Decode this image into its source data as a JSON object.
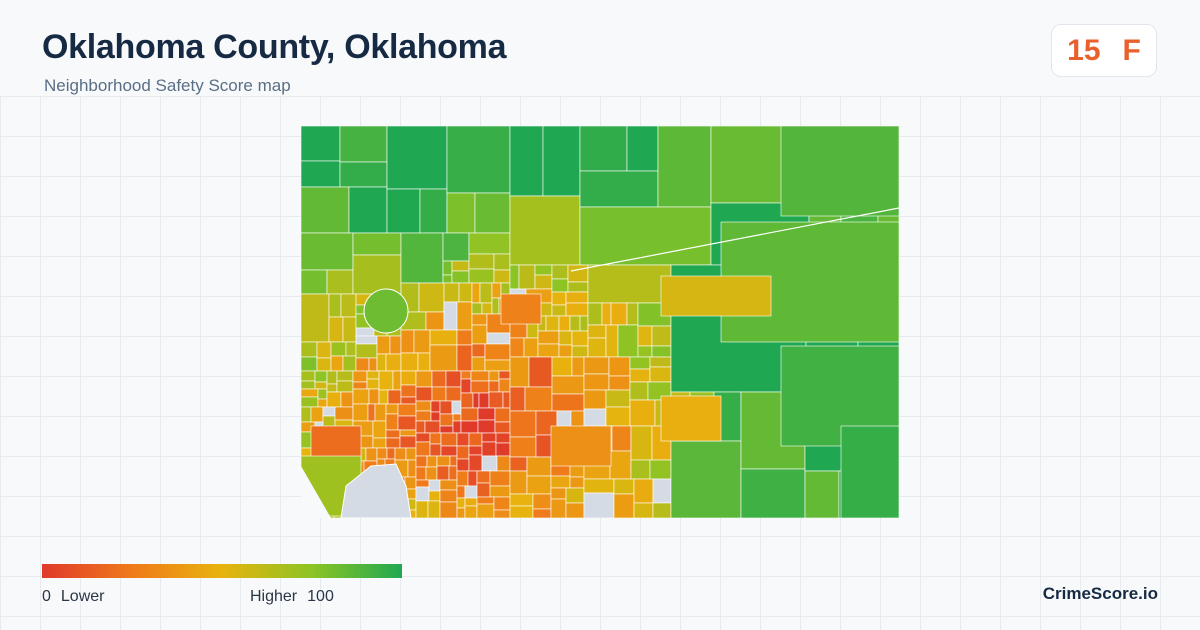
{
  "header": {
    "title": "Oklahoma County, Oklahoma",
    "subtitle": "Neighborhood Safety Score map"
  },
  "score": {
    "value": "15",
    "grade": "F",
    "color": "#e8602c"
  },
  "legend": {
    "min_value": "0",
    "min_label": "Lower",
    "max_label": "Higher",
    "max_value": "100",
    "colors": [
      "#e03a2b",
      "#ef7a1a",
      "#e8b30e",
      "#8cc424",
      "#1fa851"
    ]
  },
  "map": {
    "type": "choropleth",
    "no_data_color": "#d4dbe4",
    "region_outline_color": "#ffffff"
  },
  "brand": "CrimeScore.io"
}
